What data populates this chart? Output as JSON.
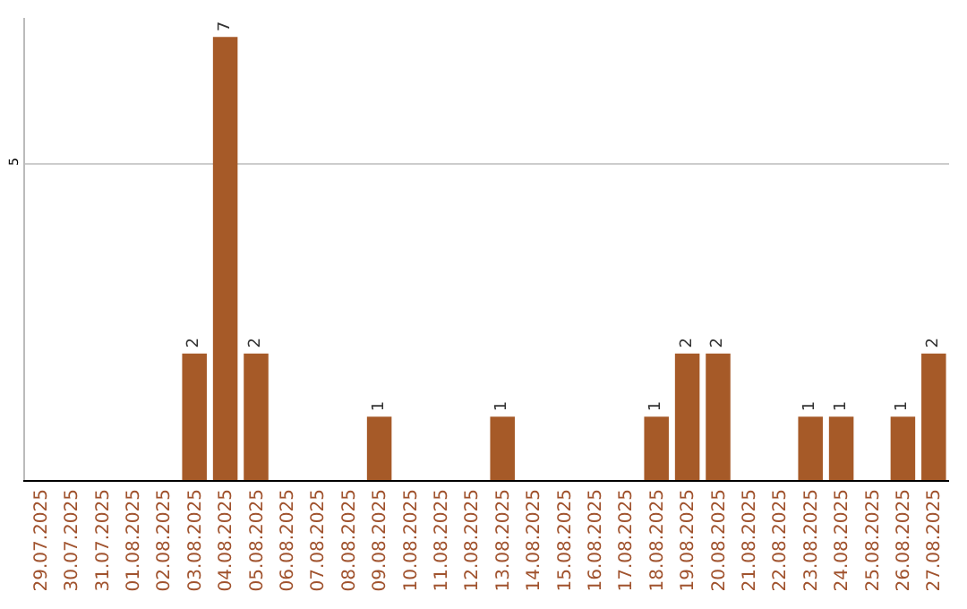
{
  "chart_data": {
    "type": "bar",
    "categories": [
      "29.07.2025",
      "30.07.2025",
      "31.07.2025",
      "01.08.2025",
      "02.08.2025",
      "03.08.2025",
      "04.08.2025",
      "05.08.2025",
      "06.08.2025",
      "07.08.2025",
      "08.08.2025",
      "09.08.2025",
      "10.08.2025",
      "11.08.2025",
      "12.08.2025",
      "13.08.2025",
      "14.08.2025",
      "15.08.2025",
      "16.08.2025",
      "17.08.2025",
      "18.08.2025",
      "19.08.2025",
      "20.08.2025",
      "21.08.2025",
      "22.08.2025",
      "23.08.2025",
      "24.08.2025",
      "25.08.2025",
      "26.08.2025",
      "27.08.2025"
    ],
    "values": [
      0,
      0,
      0,
      0,
      0,
      2,
      7,
      2,
      0,
      0,
      0,
      1,
      0,
      0,
      0,
      1,
      0,
      0,
      0,
      0,
      1,
      2,
      2,
      0,
      0,
      1,
      1,
      0,
      1,
      2
    ],
    "value_labels": [
      null,
      null,
      null,
      null,
      null,
      "2",
      "7",
      "2",
      null,
      null,
      null,
      "1",
      null,
      null,
      null,
      "1",
      null,
      null,
      null,
      null,
      "1",
      "2",
      "2",
      null,
      null,
      "1",
      "1",
      null,
      "1",
      "2"
    ],
    "color": "#a65a28",
    "ylim": [
      0,
      7.3
    ],
    "yticks": [
      5
    ],
    "grid": "y",
    "legend": false
  }
}
